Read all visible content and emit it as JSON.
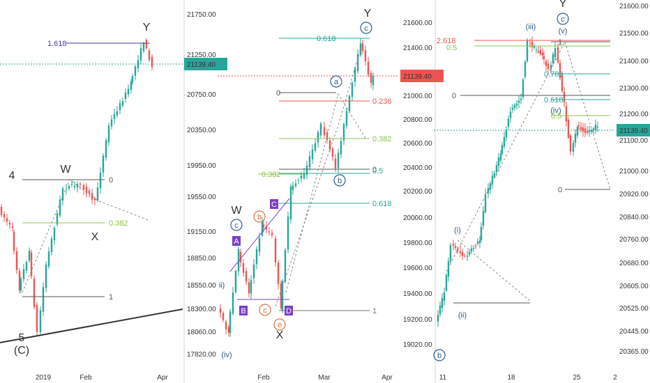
{
  "chart_data": [
    {
      "type": "candlestick",
      "title": "",
      "last_price": "21139.40",
      "y_ticks": [
        "21750.00",
        "21250.00",
        "20750.00",
        "20350.00",
        "19950.00",
        "19550.00",
        "19150.00",
        "18850.00",
        "18550.00",
        "18300.00",
        "18060.00",
        "17820.00"
      ],
      "x_ticks": [
        "2019",
        "Feb",
        "Apr"
      ],
      "fib_levels": [
        "1.618",
        "0",
        "0.382",
        "1"
      ],
      "wave_labels": [
        "Y",
        "W",
        "X",
        "4",
        "5",
        "(C)"
      ],
      "ylim": [
        17700,
        21900
      ]
    },
    {
      "type": "candlestick",
      "title": "",
      "last_price": "21139.40",
      "y_ticks": [
        "21600.00",
        "21400.00",
        "21200.00",
        "21000.00",
        "20800.00",
        "20600.00",
        "20400.00",
        "20200.00",
        "20000.00",
        "19800.00",
        "19600.00",
        "19400.00",
        "19200.00",
        "19020.00"
      ],
      "x_ticks": [
        "Feb",
        "Mar",
        "Apr"
      ],
      "fib_levels": [
        "0.618",
        "0",
        "0",
        "0.236",
        "0.382",
        "0.382",
        "0.5",
        "0.618",
        "1"
      ],
      "wave_labels": [
        "Y",
        "c",
        "a",
        "b",
        "W",
        "c",
        "b",
        "c",
        "e",
        "X",
        "ii)",
        "(iv)",
        "A",
        "B",
        "C",
        "D"
      ],
      "ylim": [
        18900,
        21750
      ]
    },
    {
      "type": "candlestick",
      "title": "",
      "last_price": "21139.40",
      "y_ticks": [
        "21600.00",
        "21500.00",
        "21400.00",
        "21300.00",
        "21200.00",
        "21100.00",
        "21000.00",
        "20920.00",
        "20840.00",
        "20760.00",
        "20680.00",
        "20605.00",
        "20525.00",
        "20445.00",
        "20365.00"
      ],
      "x_ticks": [
        "11",
        "18",
        "25",
        "2"
      ],
      "fib_levels": [
        "2.618",
        "0.5",
        "1",
        "0.786",
        "0",
        "0.618",
        "0.5",
        "0"
      ],
      "wave_labels": [
        "Y",
        "c",
        "(v)",
        "(iii)",
        "(iv)",
        "(i)",
        "(ii)",
        "b"
      ],
      "ylim": [
        20300,
        21640
      ]
    }
  ]
}
